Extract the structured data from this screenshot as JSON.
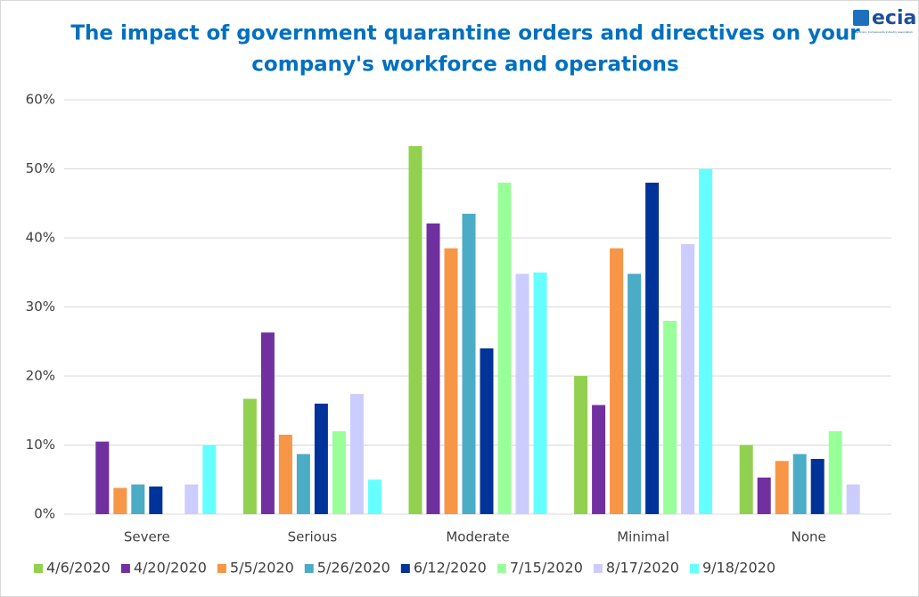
{
  "logo": "ecia",
  "logo_subtitle": "Electronic Components Industry Association",
  "chart_data": {
    "type": "bar",
    "title": [
      "The impact of government quarantine orders and directives on your",
      "company's workforce and operations"
    ],
    "categories": [
      "Severe",
      "Serious",
      "Moderate",
      "Minimal",
      "None"
    ],
    "series": [
      {
        "name": "4/6/2020",
        "color": "#92d050",
        "values": [
          0,
          16.7,
          53.3,
          20.0,
          10.0
        ]
      },
      {
        "name": "4/20/2020",
        "color": "#7030a0",
        "values": [
          10.5,
          26.3,
          42.1,
          15.8,
          5.3
        ]
      },
      {
        "name": "5/5/2020",
        "color": "#f79646",
        "values": [
          3.8,
          11.5,
          38.5,
          38.5,
          7.7
        ]
      },
      {
        "name": "5/26/2020",
        "color": "#4bacc6",
        "values": [
          4.3,
          8.7,
          43.5,
          34.8,
          8.7
        ]
      },
      {
        "name": "6/12/2020",
        "color": "#003399",
        "values": [
          4.0,
          16.0,
          24.0,
          48.0,
          8.0
        ]
      },
      {
        "name": "7/15/2020",
        "color": "#99ff99",
        "values": [
          0,
          12.0,
          48.0,
          28.0,
          12.0
        ]
      },
      {
        "name": "8/17/2020",
        "color": "#ccccff",
        "values": [
          4.3,
          17.4,
          34.8,
          39.1,
          4.3
        ]
      },
      {
        "name": "9/18/2020",
        "color": "#66ffff",
        "values": [
          10.0,
          5.0,
          35.0,
          50.0,
          0
        ]
      }
    ],
    "ylim": [
      0,
      60
    ],
    "yticks": [
      {
        "value": 0,
        "label": "0%"
      },
      {
        "value": 10,
        "label": "10%"
      },
      {
        "value": 20,
        "label": "20%"
      },
      {
        "value": 30,
        "label": "30%"
      },
      {
        "value": 40,
        "label": "40%"
      },
      {
        "value": 50,
        "label": "50%"
      },
      {
        "value": 60,
        "label": "60%"
      }
    ],
    "grid": true,
    "legend": "bottom"
  }
}
